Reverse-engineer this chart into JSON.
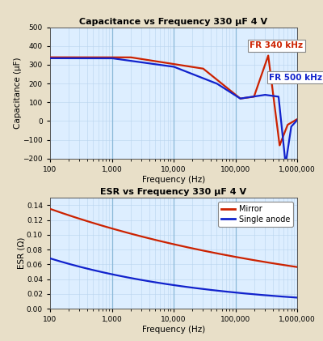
{
  "title1": "Capacitance vs Frequency 330 μF 4 V",
  "title2": "ESR vs Frequency 330 μF 4 V",
  "xlabel": "Frequency (Hz)",
  "ylabel1": "Capacitance (μF)",
  "ylabel2": "ESR (Ω)",
  "bg_color": "#e8dfc8",
  "plot_bg": "#ddeeff",
  "grid_color_minor": "#b8d4ee",
  "grid_color_major": "#8ab8d8",
  "red_color": "#cc2200",
  "blue_color": "#1122cc",
  "fr340_label": "FR 340 kHz",
  "fr500_label": "FR 500 kHz",
  "legend_mirror": "Mirror",
  "legend_single": "Single anode",
  "cap_ylim": [
    -200,
    500
  ],
  "cap_yticks": [
    -200,
    -100,
    0,
    100,
    200,
    300,
    400,
    500
  ],
  "esr_ylim": [
    0.0,
    0.15
  ],
  "esr_yticks": [
    0.0,
    0.02,
    0.04,
    0.06,
    0.08,
    0.1,
    0.12,
    0.14
  ],
  "xlim": [
    100,
    1000000
  ]
}
